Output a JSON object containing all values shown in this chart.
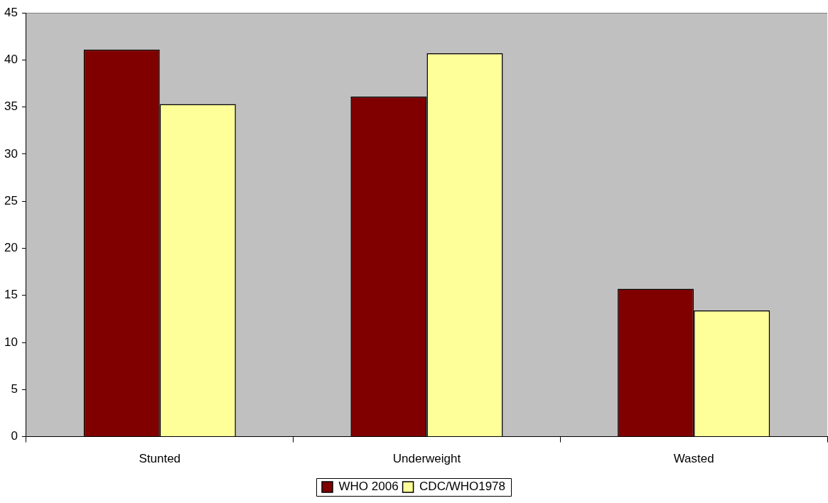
{
  "chart_data": {
    "type": "bar",
    "categories": [
      "Stunted",
      "Underweight",
      "Wasted"
    ],
    "series": [
      {
        "name": "WHO 2006",
        "color": "#800000",
        "values": [
          41.1,
          36.1,
          15.7
        ]
      },
      {
        "name": "CDC/WHO1978",
        "color": "#ffff99",
        "values": [
          35.3,
          40.7,
          13.4
        ]
      }
    ],
    "ylim": [
      0,
      45
    ],
    "yticks": [
      0,
      5,
      10,
      15,
      20,
      25,
      30,
      35,
      40,
      45
    ],
    "grid": false,
    "legend": "bottom"
  }
}
